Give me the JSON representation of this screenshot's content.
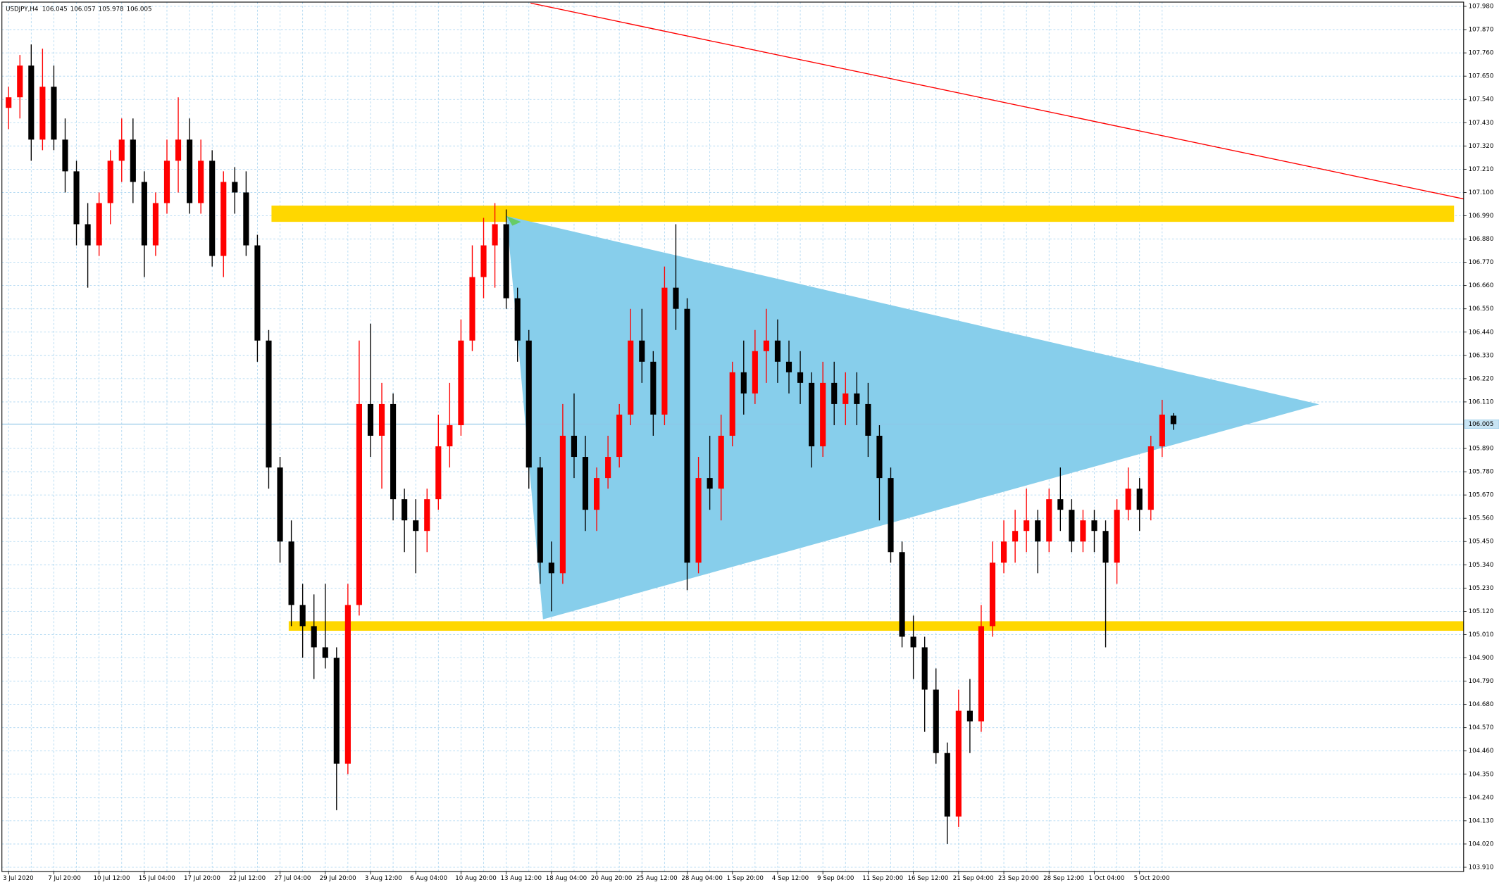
{
  "chart_data": {
    "type": "candlestick",
    "title": "USDJPY,H4",
    "up_color": "#ff0000",
    "down_color": "#000000",
    "grid": true,
    "categories": [
      "3 Jul 2020",
      null,
      null,
      null,
      "7 Jul 20:00",
      null,
      null,
      null,
      "10 Jul 12:00",
      null,
      null,
      null,
      "15 Jul 04:00",
      null,
      null,
      null,
      "17 Jul 20:00",
      null,
      null,
      null,
      "22 Jul 12:00",
      null,
      null,
      null,
      "27 Jul 04:00",
      null,
      null,
      null,
      "29 Jul 20:00",
      null,
      null,
      null,
      "3 Aug 12:00",
      null,
      null,
      null,
      "6 Aug 04:00",
      null,
      null,
      null,
      "10 Aug 20:00",
      null,
      null,
      null,
      "13 Aug 12:00",
      null,
      null,
      null,
      "18 Aug 04:00",
      null,
      null,
      null,
      "20 Aug 20:00",
      null,
      null,
      null,
      "25 Aug 12:00",
      null,
      null,
      null,
      "28 Aug 04:00",
      null,
      null,
      null,
      "1 Sep 20:00",
      null,
      null,
      null,
      "4 Sep 12:00",
      null,
      null,
      null,
      "9 Sep 04:00",
      null,
      null,
      null,
      "11 Sep 20:00",
      null,
      null,
      null,
      "16 Sep 12:00",
      null,
      null,
      null,
      "21 Sep 04:00",
      null,
      null,
      null,
      "23 Sep 20:00",
      null,
      null,
      null,
      "28 Sep 12:00",
      null,
      null,
      null,
      "1 Oct 04:00",
      null,
      null,
      null,
      "5 Oct 20:00",
      null,
      null,
      null
    ],
    "open": [
      107.5,
      107.55,
      107.7,
      107.35,
      107.6,
      107.35,
      107.2,
      106.95,
      106.85,
      107.05,
      107.25,
      107.35,
      107.15,
      106.85,
      107.05,
      107.25,
      107.35,
      107.05,
      107.25,
      106.8,
      107.15,
      107.1,
      106.85,
      106.4,
      105.8,
      105.45,
      105.15,
      105.05,
      104.95,
      104.9,
      104.4,
      105.15,
      106.1,
      105.95,
      106.1,
      105.65,
      105.55,
      105.5,
      105.65,
      105.9,
      106.0,
      106.4,
      106.7,
      106.85,
      106.95,
      106.6,
      106.4,
      105.8,
      105.35,
      105.3,
      105.95,
      105.85,
      105.6,
      105.75,
      105.85,
      106.05,
      106.4,
      106.3,
      106.05,
      106.65,
      106.55,
      105.35,
      105.75,
      105.7,
      105.95,
      106.25,
      106.15,
      106.35,
      106.4,
      106.3,
      106.25,
      106.2,
      105.9,
      106.2,
      106.1,
      106.15,
      106.1,
      105.95,
      105.75,
      105.4,
      105.0,
      104.95,
      104.75,
      104.45,
      104.15,
      104.65,
      104.6,
      105.05,
      105.35,
      105.45,
      105.5,
      105.55,
      105.45,
      105.65,
      105.6,
      105.45,
      105.55,
      105.5,
      105.35,
      105.6,
      105.7,
      105.6,
      105.9,
      106.045
    ],
    "high": [
      107.6,
      107.75,
      107.8,
      107.78,
      107.7,
      107.45,
      107.25,
      107.05,
      107.1,
      107.3,
      107.45,
      107.45,
      107.2,
      107.1,
      107.35,
      107.55,
      107.45,
      107.35,
      107.3,
      107.2,
      107.22,
      107.2,
      106.9,
      106.45,
      105.85,
      105.55,
      105.25,
      105.2,
      105.25,
      104.95,
      105.25,
      106.4,
      106.48,
      106.2,
      106.15,
      105.7,
      105.65,
      105.7,
      106.05,
      106.2,
      106.5,
      106.85,
      106.98,
      107.05,
      107.02,
      106.65,
      106.45,
      105.85,
      105.45,
      106.1,
      106.15,
      105.95,
      105.8,
      105.95,
      106.1,
      106.55,
      106.55,
      106.35,
      106.75,
      106.95,
      106.6,
      105.85,
      105.95,
      106.05,
      106.3,
      106.4,
      106.45,
      106.55,
      106.5,
      106.4,
      106.35,
      106.25,
      106.3,
      106.3,
      106.25,
      106.25,
      106.2,
      106.0,
      105.8,
      105.45,
      105.1,
      105.0,
      104.85,
      104.5,
      104.75,
      104.8,
      105.15,
      105.45,
      105.55,
      105.6,
      105.7,
      105.6,
      105.7,
      105.8,
      105.65,
      105.6,
      105.6,
      105.55,
      105.65,
      105.8,
      105.75,
      105.95,
      106.12,
      106.057
    ],
    "low": [
      107.4,
      107.45,
      107.25,
      107.3,
      107.3,
      107.1,
      106.85,
      106.65,
      106.8,
      106.95,
      107.15,
      107.05,
      106.7,
      106.8,
      107.0,
      107.1,
      107.0,
      107.0,
      106.75,
      106.7,
      107.0,
      106.8,
      106.3,
      105.7,
      105.35,
      105.05,
      104.9,
      104.8,
      104.85,
      104.18,
      104.35,
      105.1,
      105.85,
      105.7,
      105.55,
      105.4,
      105.3,
      105.4,
      105.6,
      105.8,
      105.95,
      106.35,
      106.6,
      106.65,
      106.55,
      106.3,
      105.7,
      105.25,
      105.12,
      105.25,
      105.75,
      105.5,
      105.5,
      105.7,
      105.8,
      106.0,
      106.2,
      105.95,
      106.0,
      106.45,
      105.22,
      105.3,
      105.6,
      105.55,
      105.9,
      106.05,
      106.1,
      106.2,
      106.2,
      106.15,
      106.1,
      105.8,
      105.85,
      106.0,
      106.0,
      106.0,
      105.85,
      105.55,
      105.35,
      104.95,
      104.8,
      104.55,
      104.4,
      104.02,
      104.1,
      104.45,
      104.55,
      105.0,
      105.3,
      105.35,
      105.4,
      105.3,
      105.4,
      105.5,
      105.4,
      105.4,
      105.4,
      104.95,
      105.25,
      105.55,
      105.5,
      105.55,
      105.85,
      105.978
    ],
    "close": [
      107.55,
      107.7,
      107.35,
      107.6,
      107.35,
      107.2,
      106.95,
      106.85,
      107.05,
      107.25,
      107.35,
      107.15,
      106.85,
      107.05,
      107.25,
      107.35,
      107.05,
      107.25,
      106.8,
      107.15,
      107.1,
      106.85,
      106.4,
      105.8,
      105.45,
      105.15,
      105.05,
      104.95,
      104.9,
      104.4,
      105.15,
      106.1,
      105.95,
      106.1,
      105.65,
      105.55,
      105.5,
      105.65,
      105.9,
      106.0,
      106.4,
      106.7,
      106.85,
      106.95,
      106.6,
      106.4,
      105.8,
      105.35,
      105.3,
      105.95,
      105.85,
      105.6,
      105.75,
      105.85,
      106.05,
      106.4,
      106.3,
      106.05,
      106.65,
      106.55,
      105.35,
      105.75,
      105.7,
      105.95,
      106.25,
      106.15,
      106.35,
      106.4,
      106.3,
      106.25,
      106.2,
      105.9,
      106.2,
      106.1,
      106.15,
      106.1,
      105.95,
      105.75,
      105.4,
      105.0,
      104.95,
      104.75,
      104.45,
      104.15,
      104.65,
      104.6,
      105.05,
      105.35,
      105.45,
      105.5,
      105.55,
      105.45,
      105.65,
      105.6,
      105.45,
      105.55,
      105.5,
      105.35,
      105.6,
      105.7,
      105.6,
      105.9,
      106.05,
      106.005
    ],
    "ylim": [
      103.89,
      108.0
    ],
    "yticks": [
      {
        "value": 103.91,
        "label": "103.910"
      },
      {
        "value": 104.02,
        "label": "104.020"
      },
      {
        "value": 104.13,
        "label": "104.130"
      },
      {
        "value": 104.24,
        "label": "104.240"
      },
      {
        "value": 104.35,
        "label": "104.350"
      },
      {
        "value": 104.46,
        "label": "104.460"
      },
      {
        "value": 104.57,
        "label": "104.570"
      },
      {
        "value": 104.68,
        "label": "104.680"
      },
      {
        "value": 104.79,
        "label": "104.790"
      },
      {
        "value": 104.9,
        "label": "104.900"
      },
      {
        "value": 105.01,
        "label": "105.010"
      },
      {
        "value": 105.12,
        "label": "105.120"
      },
      {
        "value": 105.23,
        "label": "105.230"
      },
      {
        "value": 105.34,
        "label": "105.340"
      },
      {
        "value": 105.45,
        "label": "105.450"
      },
      {
        "value": 105.56,
        "label": "105.560"
      },
      {
        "value": 105.67,
        "label": "105.670"
      },
      {
        "value": 105.78,
        "label": "105.780"
      },
      {
        "value": 105.89,
        "label": "105.890"
      },
      {
        "value": 106.11,
        "label": "106.110"
      },
      {
        "value": 106.22,
        "label": "106.220"
      },
      {
        "value": 106.33,
        "label": "106.330"
      },
      {
        "value": 106.44,
        "label": "106.440"
      },
      {
        "value": 106.55,
        "label": "106.550"
      },
      {
        "value": 106.66,
        "label": "106.660"
      },
      {
        "value": 106.77,
        "label": "106.770"
      },
      {
        "value": 106.88,
        "label": "106.880"
      },
      {
        "value": 106.99,
        "label": "106.990"
      },
      {
        "value": 107.1,
        "label": "107.100"
      },
      {
        "value": 107.21,
        "label": "107.210"
      },
      {
        "value": 107.32,
        "label": "107.320"
      },
      {
        "value": 107.43,
        "label": "107.430"
      },
      {
        "value": 107.54,
        "label": "107.540"
      },
      {
        "value": 107.65,
        "label": "107.650"
      },
      {
        "value": 107.76,
        "label": "107.760"
      },
      {
        "value": 107.87,
        "label": "107.870"
      },
      {
        "value": 107.98,
        "label": "107.980"
      }
    ]
  }
}
